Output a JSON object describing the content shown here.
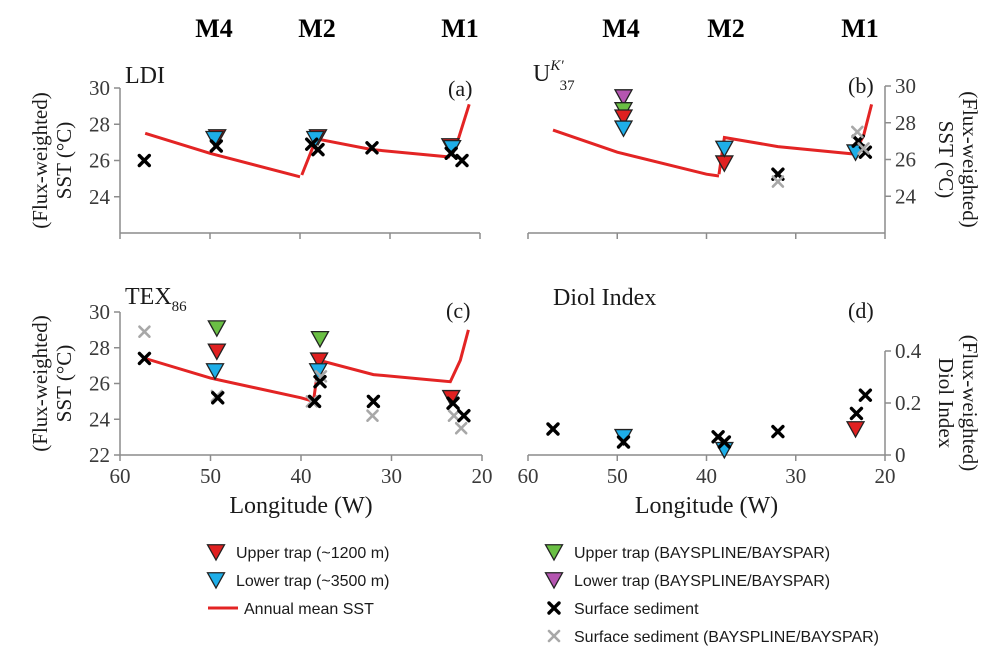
{
  "chart_data": [
    {
      "type": "scatter",
      "panel": "a",
      "title": "LDI",
      "letter": "(a)",
      "ylabel_lines": [
        "(Flux-weighted)",
        "SST (°C)"
      ],
      "ylabel_side": "left",
      "xlim": [
        60,
        20
      ],
      "ylim": [
        22,
        30
      ],
      "yticks": [
        24,
        26,
        28,
        30
      ],
      "xticks": [],
      "sst_line": [
        {
          "points": [
            [
              57.2,
              27.5
            ],
            [
              50,
              26.4
            ],
            [
              40,
              25.1
            ]
          ]
        },
        {
          "points": [
            [
              39.8,
              25.2
            ],
            [
              38.2,
              27.2
            ],
            [
              32,
              26.6
            ],
            [
              23.5,
              26.2
            ],
            [
              22.4,
              27.2
            ],
            [
              21.2,
              29.1
            ]
          ]
        }
      ],
      "series": [
        {
          "name": "Upper trap (~1200 m)",
          "marker": "triangle-down",
          "color": "#e02020",
          "points": [
            [
              49.2,
              27.3
            ],
            [
              38,
              27.3
            ],
            [
              23.3,
              26.8
            ]
          ]
        },
        {
          "name": "Lower trap (~3500 m)",
          "marker": "triangle-down",
          "color": "#1eaee8",
          "points": [
            [
              49.5,
              27.2
            ],
            [
              38.3,
              27.2
            ],
            [
              23.1,
              26.7
            ]
          ]
        },
        {
          "name": "Surface sediment",
          "marker": "x",
          "color": "#000000",
          "points": [
            [
              57.3,
              26
            ],
            [
              49.3,
              26.8
            ],
            [
              38.7,
              26.9
            ],
            [
              38,
              26.6
            ],
            [
              32,
              26.7
            ],
            [
              23.2,
              26.4
            ],
            [
              22,
              26
            ]
          ]
        }
      ]
    },
    {
      "type": "scatter",
      "panel": "b",
      "title": "U",
      "title_sup": "K′",
      "title_sub": "37",
      "letter": "(b)",
      "ylabel_lines": [
        "(Flux-weighted)",
        "SST (°C)"
      ],
      "ylabel_side": "right",
      "xlim": [
        60,
        20
      ],
      "ylim": [
        22,
        30
      ],
      "yticks": [
        24,
        26,
        28,
        30
      ],
      "xticks": [],
      "sst_line": [
        {
          "points": [
            [
              57.2,
              27.6
            ],
            [
              50,
              26.4
            ],
            [
              40,
              25.2
            ],
            [
              38.6,
              25.1
            ]
          ]
        },
        {
          "points": [
            [
              38.6,
              25.2
            ],
            [
              38,
              27.2
            ],
            [
              32,
              26.7
            ],
            [
              23.5,
              26.3
            ],
            [
              22.4,
              27.3
            ],
            [
              21.5,
              29
            ]
          ]
        }
      ],
      "series": [
        {
          "name": "Lower trap (BAYSPLINE/BAYSPAR)",
          "marker": "triangle-down",
          "color": "#b455b0",
          "points": [
            [
              49.3,
              29.4
            ]
          ]
        },
        {
          "name": "Upper trap (BAYSPLINE/BAYSPAR)",
          "marker": "triangle-down",
          "color": "#6abf44",
          "points": [
            [
              49.3,
              28.7
            ]
          ]
        },
        {
          "name": "Upper trap (~1200 m)",
          "marker": "triangle-down",
          "color": "#e02020",
          "points": [
            [
              49.3,
              28.3
            ],
            [
              38,
              25.8
            ]
          ]
        },
        {
          "name": "Lower trap (~3500 m)",
          "marker": "triangle-down",
          "color": "#1eaee8",
          "points": [
            [
              49.3,
              27.7
            ],
            [
              38,
              26.6
            ],
            [
              23.3,
              26.4
            ]
          ]
        },
        {
          "name": "Surface sediment",
          "marker": "x",
          "color": "#000000",
          "points": [
            [
              32,
              25.2
            ],
            [
              23,
              27
            ],
            [
              22.2,
              26.4
            ]
          ]
        },
        {
          "name": "Surface sediment (BAYSPLINE/BAYSPAR)",
          "marker": "x",
          "color": "#a8a8a8",
          "points": [
            [
              32,
              24.8
            ],
            [
              23.1,
              27.5
            ],
            [
              22.4,
              26.6
            ]
          ]
        }
      ]
    },
    {
      "type": "scatter",
      "panel": "c",
      "title": "TEX",
      "title_sub": "86",
      "letter": "(c)",
      "ylabel_lines": [
        "(Flux-weighted)",
        "SST (°C)"
      ],
      "ylabel_side": "left",
      "xlim": [
        60,
        20
      ],
      "ylim": [
        22,
        30
      ],
      "yticks": [
        22,
        24,
        26,
        28,
        30
      ],
      "xticks": [
        60,
        50,
        40,
        30,
        20
      ],
      "xlabel": "Longitude (W)",
      "sst_line": [
        {
          "points": [
            [
              57.2,
              27.4
            ],
            [
              50,
              26.3
            ],
            [
              40,
              25.2
            ],
            [
              38.6,
              25
            ]
          ]
        },
        {
          "points": [
            [
              38.6,
              25.1
            ],
            [
              38,
              27.3
            ],
            [
              32,
              26.5
            ],
            [
              23.5,
              26.1
            ],
            [
              22.4,
              27.3
            ],
            [
              21.5,
              29
            ]
          ]
        }
      ],
      "series": [
        {
          "name": "Upper trap (BAYSPLINE/BAYSPAR)",
          "marker": "triangle-down",
          "color": "#6abf44",
          "points": [
            [
              49.3,
              29.1
            ],
            [
              37.9,
              28.5
            ]
          ]
        },
        {
          "name": "Upper trap (~1200 m)",
          "marker": "triangle-down",
          "color": "#e02020",
          "points": [
            [
              49.3,
              27.8
            ],
            [
              38,
              27.3
            ],
            [
              23.4,
              25.2
            ]
          ]
        },
        {
          "name": "Lower trap (~3500 m)",
          "marker": "triangle-down",
          "color": "#1eaee8",
          "points": [
            [
              49.5,
              26.7
            ],
            [
              38.1,
              26.7
            ]
          ]
        },
        {
          "name": "Surface sediment (BAYSPLINE/BAYSPAR)",
          "marker": "x",
          "color": "#a8a8a8",
          "points": [
            [
              57.3,
              28.9
            ],
            [
              49.3,
              25.3
            ],
            [
              38.8,
              25
            ],
            [
              37.8,
              26.4
            ],
            [
              32.1,
              24.2
            ],
            [
              23.1,
              24.2
            ],
            [
              22.3,
              23.5
            ]
          ]
        },
        {
          "name": "Surface sediment",
          "marker": "x",
          "color": "#000000",
          "points": [
            [
              57.3,
              27.4
            ],
            [
              49.2,
              25.2
            ],
            [
              38.5,
              25
            ],
            [
              37.9,
              26.1
            ],
            [
              32,
              25
            ],
            [
              23.2,
              24.9
            ],
            [
              22,
              24.2
            ]
          ]
        }
      ]
    },
    {
      "type": "scatter",
      "panel": "d",
      "title": "Diol Index",
      "letter": "(d)",
      "ylabel_lines": [
        "(Flux-weighted)",
        "Diol Index"
      ],
      "ylabel_side": "right",
      "xlim": [
        60,
        20
      ],
      "ylim": [
        0,
        0.55
      ],
      "yticks": [
        0,
        0.2,
        0.4
      ],
      "xticks": [
        60,
        50,
        40,
        30,
        20
      ],
      "xlabel": "Longitude (W)",
      "sst_line": [],
      "series": [
        {
          "name": "Lower trap (~3500 m)",
          "marker": "triangle-down",
          "color": "#1eaee8",
          "points": [
            [
              49.3,
              0.07
            ],
            [
              38,
              0.02
            ]
          ]
        },
        {
          "name": "Upper trap (~1200 m)",
          "marker": "triangle-down",
          "color": "#e02020",
          "points": [
            [
              23.3,
              0.1
            ]
          ]
        },
        {
          "name": "Surface sediment",
          "marker": "x",
          "color": "#000000",
          "points": [
            [
              57.2,
              0.1
            ],
            [
              49.3,
              0.05
            ],
            [
              38.7,
              0.07
            ],
            [
              38,
              0.05
            ],
            [
              32,
              0.09
            ],
            [
              23.2,
              0.16
            ],
            [
              22.2,
              0.23
            ]
          ]
        }
      ]
    }
  ],
  "stations": [
    "M4",
    "M2",
    "M1"
  ],
  "station_longitudes": [
    49.3,
    38,
    23.2
  ],
  "legend": {
    "items": [
      {
        "label": "Upper trap (~1200 m)",
        "marker": "triangle-down",
        "color": "#e02020"
      },
      {
        "label": "Upper trap (BAYSPLINE/BAYSPAR)",
        "marker": "triangle-down",
        "color": "#6abf44"
      },
      {
        "label": "Lower trap (~3500 m)",
        "marker": "triangle-down",
        "color": "#1eaee8"
      },
      {
        "label": "Lower trap (BAYSPLINE/BAYSPAR)",
        "marker": "triangle-down",
        "color": "#b455b0"
      },
      {
        "label": "Annual mean SST",
        "marker": "line",
        "color": "#e32424"
      },
      {
        "label": "Surface sediment",
        "marker": "x",
        "color": "#000000"
      },
      {
        "label": "Surface sediment (BAYSPLINE/BAYSPAR)",
        "marker": "x",
        "color": "#a8a8a8"
      }
    ]
  }
}
